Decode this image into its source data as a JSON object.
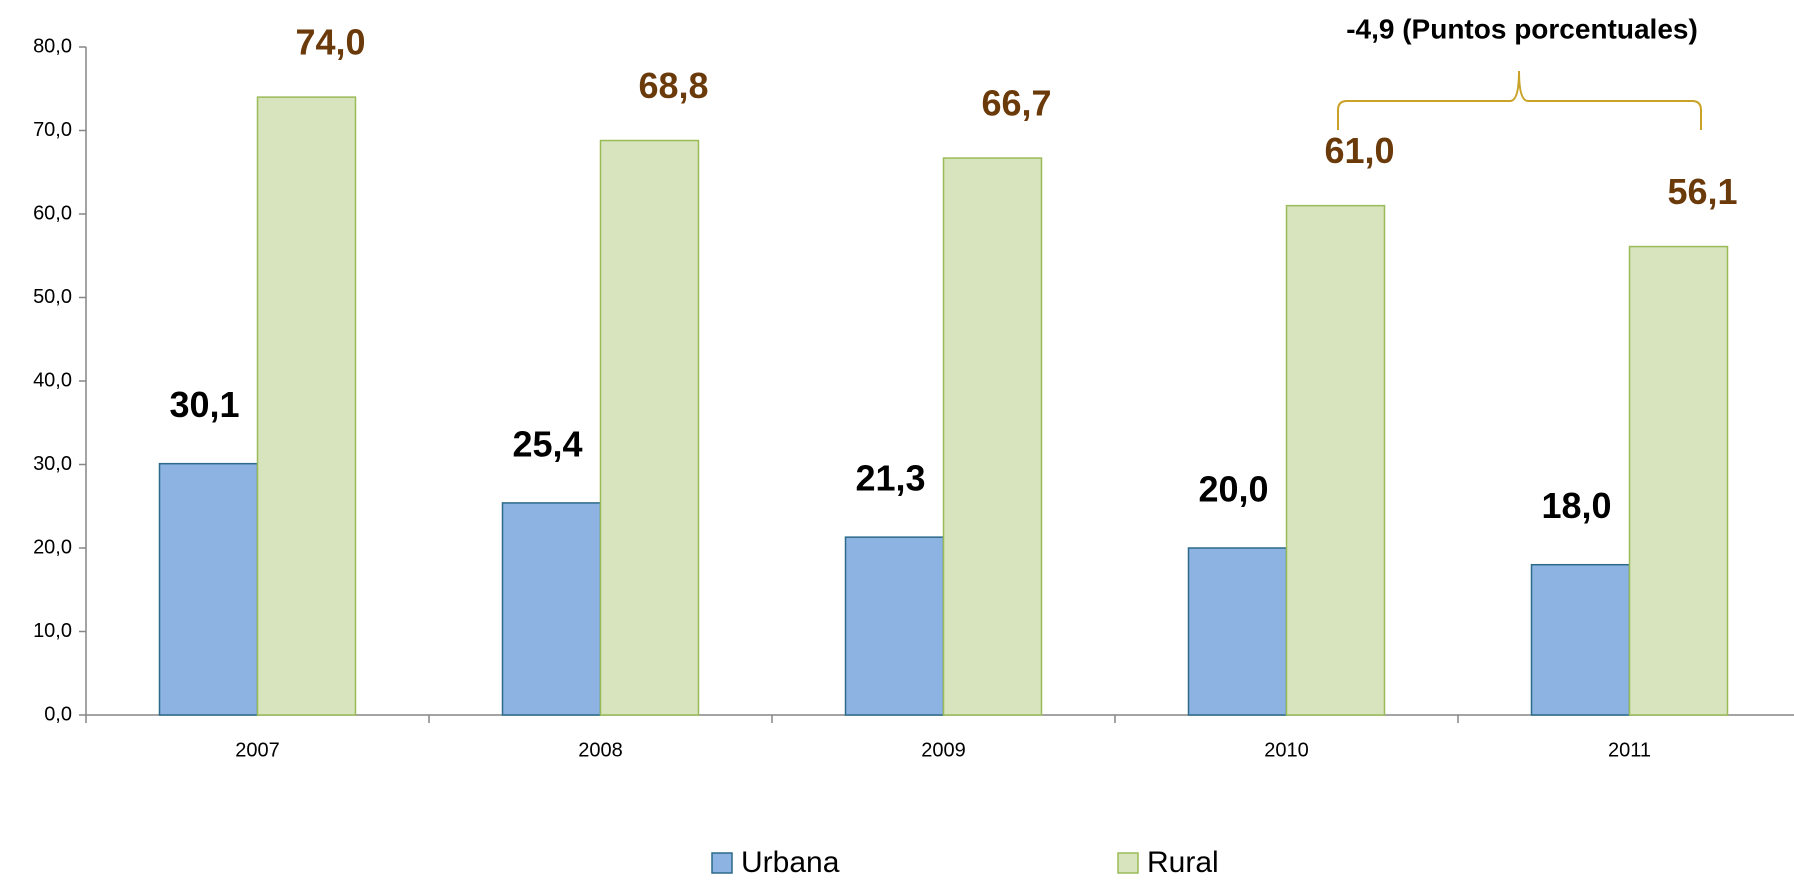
{
  "chart_data": {
    "type": "bar",
    "annotation": "-4,9  (Puntos porcentuales)",
    "categories": [
      "2007",
      "2008",
      "2009",
      "2010",
      "2011"
    ],
    "series": [
      {
        "name": "Urbana",
        "color": "#8db3e2",
        "values": [
          30.1,
          25.4,
          21.3,
          20.0,
          18.0
        ],
        "value_labels": [
          "30,1",
          "25,4",
          "21,3",
          "20,0",
          "18,0"
        ]
      },
      {
        "name": "Rural",
        "color": "#d7e4bd",
        "values": [
          74.0,
          68.8,
          66.7,
          61.0,
          56.1
        ],
        "value_labels": [
          "74,0",
          "68,8",
          "66,7",
          "61,0",
          "56,1"
        ]
      }
    ],
    "ylim": [
      0,
      80
    ],
    "yticks": [
      {
        "value": 0,
        "label": "0,0"
      },
      {
        "value": 10,
        "label": "10,0"
      },
      {
        "value": 20,
        "label": "20,0"
      },
      {
        "value": 30,
        "label": "30,0"
      },
      {
        "value": 40,
        "label": "40,0"
      },
      {
        "value": 50,
        "label": "50,0"
      },
      {
        "value": 60,
        "label": "60,0"
      },
      {
        "value": 70,
        "label": "70,0"
      },
      {
        "value": 80,
        "label": "80,0"
      }
    ],
    "legend": "bottom"
  }
}
